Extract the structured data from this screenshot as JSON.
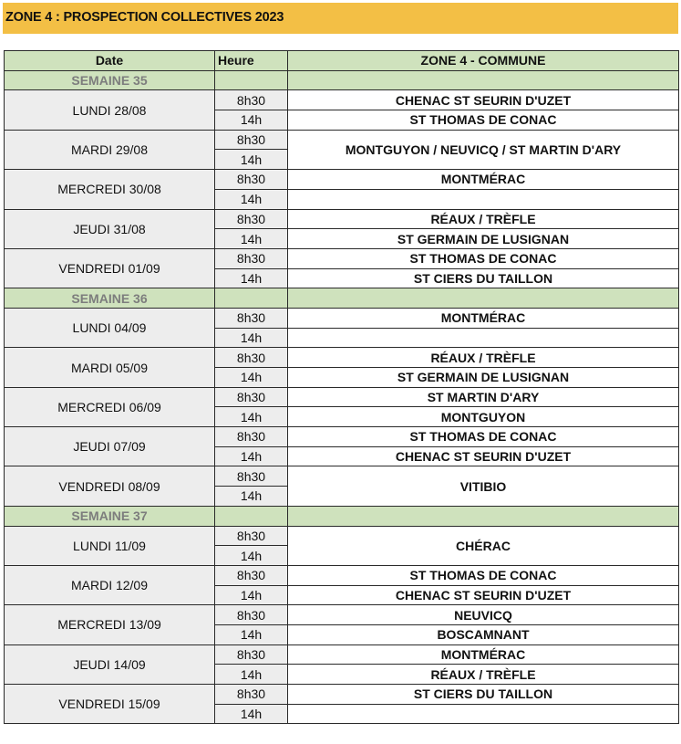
{
  "title": "ZONE 4 : PROSPECTION COLLECTIVES 2023",
  "colors": {
    "title_bg": "#f3bf45",
    "header_bg": "#cfe2bd",
    "date_bg": "#ededed"
  },
  "headers": {
    "date": "Date",
    "heure": "Heure",
    "commune": "ZONE 4 - COMMUNE"
  },
  "weeks": [
    {
      "label": "SEMAINE 35",
      "days": [
        {
          "date": "LUNDI 28/08",
          "slots": [
            "8h30",
            "14h"
          ],
          "communes": [
            "CHENAC ST SEURIN D'UZET",
            "ST THOMAS DE CONAC"
          ]
        },
        {
          "date": "MARDI 29/08",
          "slots": [
            "8h30",
            "14h"
          ],
          "merged": "MONTGUYON / NEUVICQ / ST MARTIN D'ARY"
        },
        {
          "date": "MERCREDI 30/08",
          "slots": [
            "8h30",
            "14h"
          ],
          "communes": [
            "MONTMÉRAC",
            ""
          ]
        },
        {
          "date": "JEUDI 31/08",
          "slots": [
            "8h30",
            "14h"
          ],
          "communes": [
            "RÉAUX / TRÈFLE",
            "ST GERMAIN DE LUSIGNAN"
          ]
        },
        {
          "date": "VENDREDI 01/09",
          "slots": [
            "8h30",
            "14h"
          ],
          "communes": [
            "ST THOMAS DE CONAC",
            "ST CIERS DU TAILLON"
          ]
        }
      ]
    },
    {
      "label": "SEMAINE 36",
      "days": [
        {
          "date": "LUNDI 04/09",
          "slots": [
            "8h30",
            "14h"
          ],
          "communes": [
            "MONTMÉRAC",
            ""
          ]
        },
        {
          "date": "MARDI 05/09",
          "slots": [
            "8h30",
            "14h"
          ],
          "communes": [
            "RÉAUX / TRÈFLE",
            "ST GERMAIN DE LUSIGNAN"
          ]
        },
        {
          "date": "MERCREDI 06/09",
          "slots": [
            "8h30",
            "14h"
          ],
          "communes": [
            "ST MARTIN D'ARY",
            "MONTGUYON"
          ]
        },
        {
          "date": "JEUDI 07/09",
          "slots": [
            "8h30",
            "14h"
          ],
          "communes": [
            "ST THOMAS DE CONAC",
            "CHENAC ST SEURIN D'UZET"
          ]
        },
        {
          "date": "VENDREDI 08/09",
          "slots": [
            "8h30",
            "14h"
          ],
          "merged": "VITIBIO"
        }
      ]
    },
    {
      "label": "SEMAINE 37",
      "days": [
        {
          "date": "LUNDI 11/09",
          "slots": [
            "8h30",
            "14h"
          ],
          "merged": "CHÉRAC"
        },
        {
          "date": "MARDI 12/09",
          "slots": [
            "8h30",
            "14h"
          ],
          "communes": [
            "ST THOMAS DE CONAC",
            "CHENAC ST SEURIN D'UZET"
          ]
        },
        {
          "date": "MERCREDI 13/09",
          "slots": [
            "8h30",
            "14h"
          ],
          "communes": [
            "NEUVICQ",
            "BOSCAMNANT"
          ]
        },
        {
          "date": "JEUDI 14/09",
          "slots": [
            "8h30",
            "14h"
          ],
          "communes": [
            "MONTMÉRAC",
            "RÉAUX / TRÈFLE"
          ]
        },
        {
          "date": "VENDREDI 15/09",
          "slots": [
            "8h30",
            "14h"
          ],
          "communes": [
            "ST CIERS DU TAILLON",
            ""
          ]
        }
      ]
    }
  ]
}
